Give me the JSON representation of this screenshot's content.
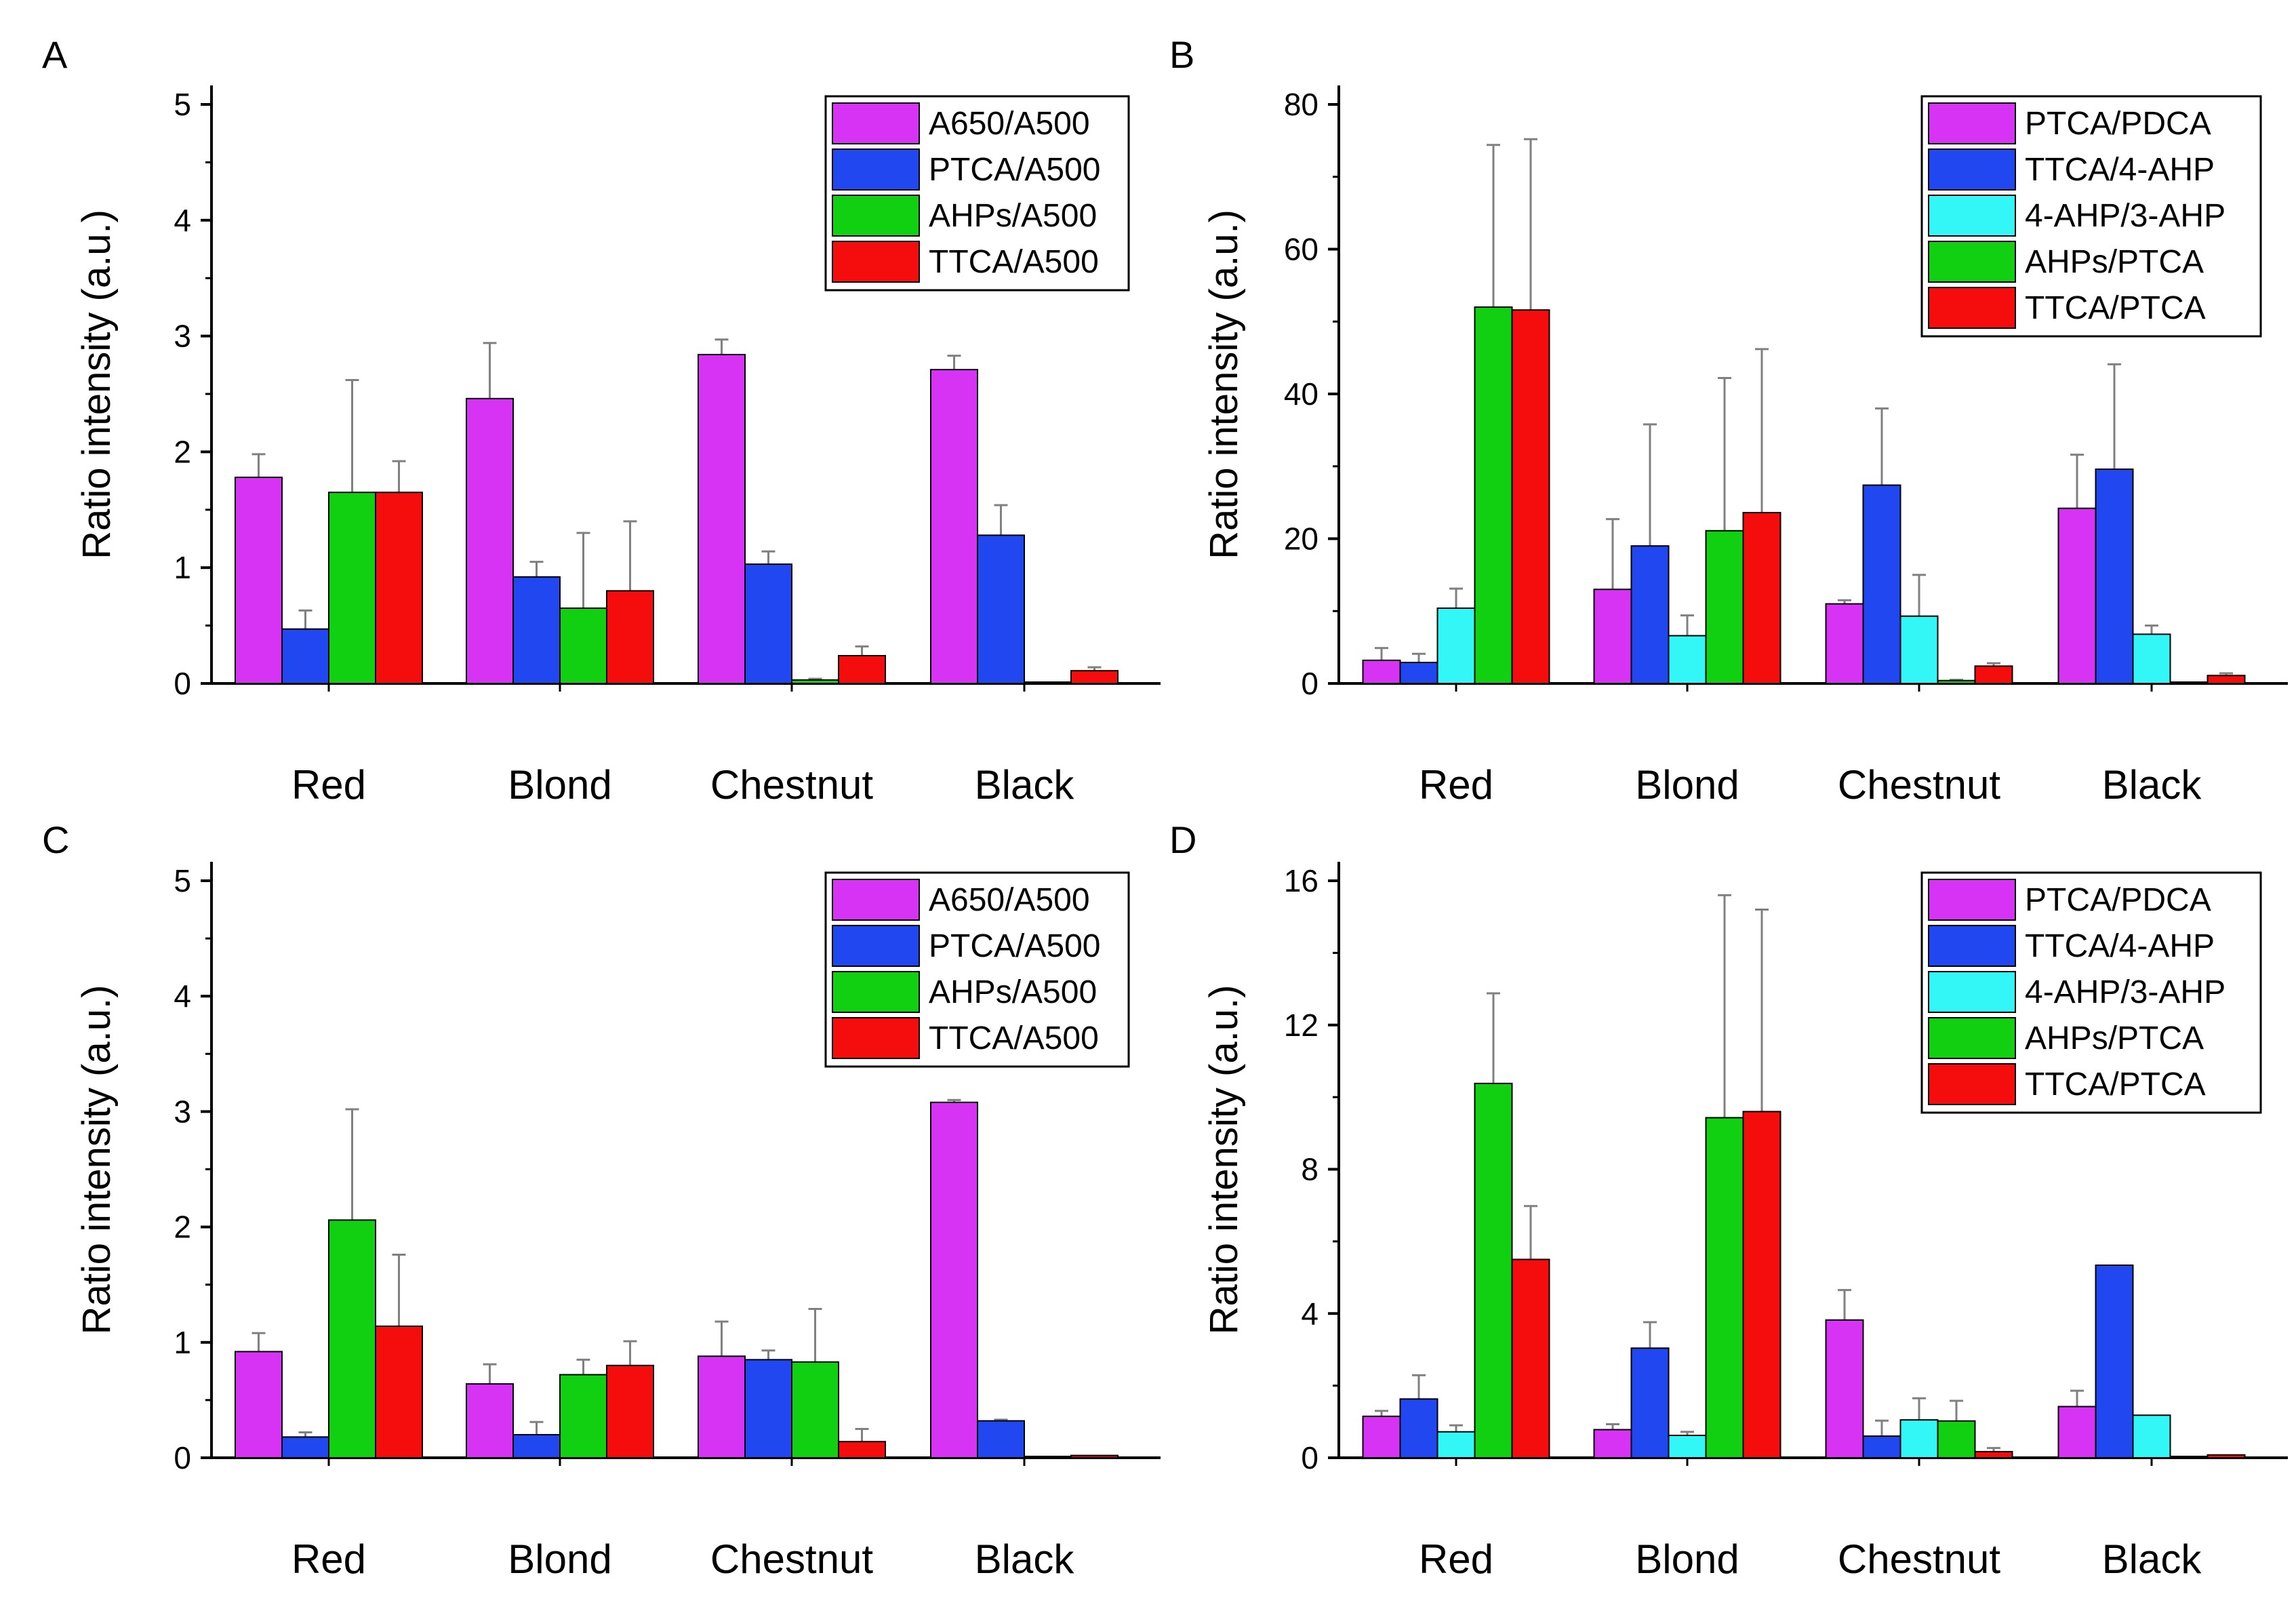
{
  "figure": {
    "categories": [
      "Red",
      "Blond",
      "Chestnut",
      "Black"
    ],
    "colors": {
      "magenta": "#D633F5",
      "blue": "#2147F0",
      "cyan": "#33F6F6",
      "green": "#11CF11",
      "red": "#F50D0D",
      "axis": "#000000",
      "error": "#808080"
    }
  },
  "chart_data": [
    {
      "panel": "A",
      "type": "bar",
      "title": "",
      "xlabel": "",
      "ylabel": "Ratio intensity (a.u.)",
      "ylim": [
        0,
        5
      ],
      "yticks": [
        "0",
        "1",
        "2",
        "3",
        "4",
        "5"
      ],
      "categories": [
        "Red",
        "Blond",
        "Chestnut",
        "Black"
      ],
      "legend_position": "top-right",
      "series": [
        {
          "name": "A650/A500",
          "color": "magenta",
          "values": [
            1.78,
            2.46,
            2.84,
            2.71
          ],
          "errors": [
            0.2,
            0.48,
            0.13,
            0.12
          ]
        },
        {
          "name": "PTCA/A500",
          "color": "blue",
          "values": [
            0.47,
            0.92,
            1.03,
            1.28
          ],
          "errors": [
            0.16,
            0.13,
            0.11,
            0.26
          ]
        },
        {
          "name": "AHPs/A500",
          "color": "green",
          "values": [
            1.65,
            0.65,
            0.03,
            0.01
          ],
          "errors": [
            0.97,
            0.65,
            0.01,
            0.0
          ]
        },
        {
          "name": "TTCA/A500",
          "color": "red",
          "values": [
            1.65,
            0.8,
            0.24,
            0.11
          ],
          "errors": [
            0.27,
            0.6,
            0.08,
            0.03
          ]
        }
      ]
    },
    {
      "panel": "B",
      "type": "bar",
      "title": "",
      "xlabel": "",
      "ylabel": "Ratio intensity (a.u.)",
      "ylim": [
        0,
        80
      ],
      "yticks": [
        "0",
        "20",
        "40",
        "60",
        "80"
      ],
      "categories": [
        "Red",
        "Blond",
        "Chestnut",
        "Black"
      ],
      "legend_position": "top-right",
      "series": [
        {
          "name": "PTCA/PDCA",
          "color": "magenta",
          "values": [
            3.2,
            13.0,
            11.0,
            24.2
          ],
          "errors": [
            1.7,
            9.7,
            0.5,
            7.4
          ]
        },
        {
          "name": "TTCA/4-AHP",
          "color": "blue",
          "values": [
            2.9,
            19.0,
            27.4,
            29.6
          ],
          "errors": [
            1.2,
            16.8,
            10.6,
            14.5
          ]
        },
        {
          "name": "4-AHP/3-AHP",
          "color": "cyan",
          "values": [
            10.4,
            6.6,
            9.3,
            6.8
          ],
          "errors": [
            2.7,
            2.8,
            5.7,
            1.2
          ]
        },
        {
          "name": "AHPs/PTCA",
          "color": "green",
          "values": [
            52.0,
            21.1,
            0.4,
            0.0
          ],
          "errors": [
            22.4,
            21.1,
            0.1,
            0.0
          ]
        },
        {
          "name": "TTCA/PTCA",
          "color": "red",
          "values": [
            51.6,
            23.6,
            2.4,
            1.1
          ],
          "errors": [
            23.6,
            22.6,
            0.4,
            0.3
          ]
        }
      ]
    },
    {
      "panel": "C",
      "type": "bar",
      "title": "",
      "xlabel": "",
      "ylabel": "Ratio intensity (a.u.)",
      "ylim": [
        0,
        5
      ],
      "yticks": [
        "0",
        "1",
        "2",
        "3",
        "4",
        "5"
      ],
      "categories": [
        "Red",
        "Blond",
        "Chestnut",
        "Black"
      ],
      "legend_position": "top-right",
      "series": [
        {
          "name": "A650/A500",
          "color": "magenta",
          "values": [
            0.92,
            0.64,
            0.88,
            3.08
          ],
          "errors": [
            0.16,
            0.17,
            0.3,
            0.02
          ]
        },
        {
          "name": "PTCA/A500",
          "color": "blue",
          "values": [
            0.18,
            0.2,
            0.85,
            0.32
          ],
          "errors": [
            0.04,
            0.11,
            0.08,
            0.01
          ]
        },
        {
          "name": "AHPs/A500",
          "color": "green",
          "values": [
            2.06,
            0.72,
            0.83,
            0.0
          ],
          "errors": [
            0.96,
            0.13,
            0.46,
            0.0
          ]
        },
        {
          "name": "TTCA/A500",
          "color": "red",
          "values": [
            1.14,
            0.8,
            0.14,
            0.02
          ],
          "errors": [
            0.62,
            0.21,
            0.11,
            0.0
          ]
        }
      ]
    },
    {
      "panel": "D",
      "type": "bar",
      "title": "",
      "xlabel": "",
      "ylabel": "Ratio intensity (a.u.)",
      "ylim": [
        0,
        16
      ],
      "yticks": [
        "0",
        "4",
        "8",
        "12",
        "16"
      ],
      "categories": [
        "Red",
        "Blond",
        "Chestnut",
        "Black"
      ],
      "legend_position": "top-right",
      "series": [
        {
          "name": "PTCA/PDCA",
          "color": "magenta",
          "values": [
            1.15,
            0.78,
            3.82,
            1.42
          ],
          "errors": [
            0.15,
            0.15,
            0.83,
            0.44
          ]
        },
        {
          "name": "TTCA/4-AHP",
          "color": "blue",
          "values": [
            1.63,
            3.04,
            0.6,
            5.34
          ],
          "errors": [
            0.66,
            0.72,
            0.43,
            0.0
          ]
        },
        {
          "name": "4-AHP/3-AHP",
          "color": "cyan",
          "values": [
            0.72,
            0.62,
            1.05,
            1.18
          ],
          "errors": [
            0.18,
            0.1,
            0.6,
            0.0
          ]
        },
        {
          "name": "AHPs/PTCA",
          "color": "green",
          "values": [
            10.38,
            9.43,
            1.02,
            0.0
          ],
          "errors": [
            2.5,
            6.17,
            0.56,
            0.0
          ]
        },
        {
          "name": "TTCA/PTCA",
          "color": "red",
          "values": [
            5.5,
            9.6,
            0.17,
            0.08
          ],
          "errors": [
            1.48,
            5.6,
            0.1,
            0.0
          ]
        }
      ]
    }
  ]
}
